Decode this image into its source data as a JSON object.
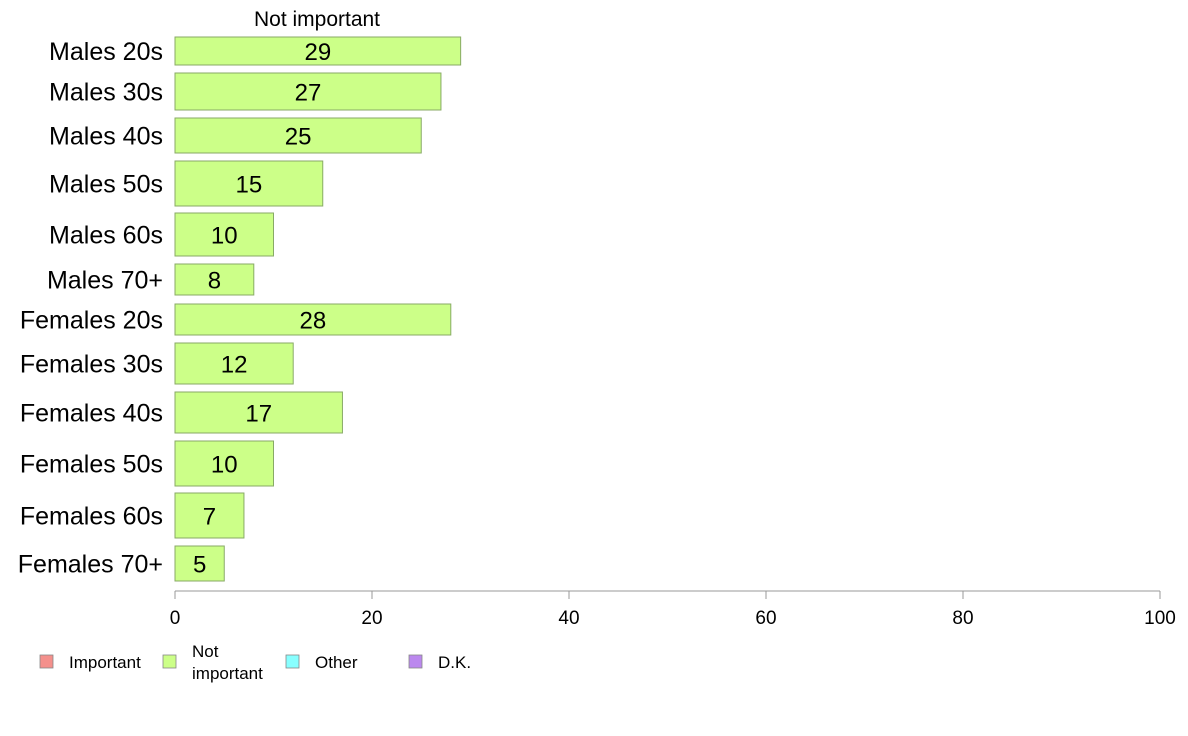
{
  "chart_data": {
    "type": "bar",
    "orientation": "horizontal",
    "title": "Not important",
    "categories": [
      "Males 20s",
      "Males 30s",
      "Males 40s",
      "Males 50s",
      "Males 60s",
      "Males 70+",
      "Females 20s",
      "Females 30s",
      "Females 40s",
      "Females 50s",
      "Females 60s",
      "Females 70+"
    ],
    "values": [
      29,
      27,
      25,
      15,
      10,
      8,
      28,
      12,
      17,
      10,
      7,
      5
    ],
    "xlim": [
      0,
      100
    ],
    "xticks": [
      0,
      20,
      40,
      60,
      80,
      100
    ],
    "grid": false,
    "legend_position": "bottom-left",
    "legend": [
      {
        "label": "Important",
        "color": "#f4908c"
      },
      {
        "label_lines": [
          "Not",
          "important"
        ],
        "color": "#ccff88"
      },
      {
        "label": "Other",
        "color": "#88ffff"
      },
      {
        "label": "D.K.",
        "color": "#bb88ee"
      }
    ],
    "bar_color": "#ccff88",
    "bar_stroke": "#88aa66"
  }
}
